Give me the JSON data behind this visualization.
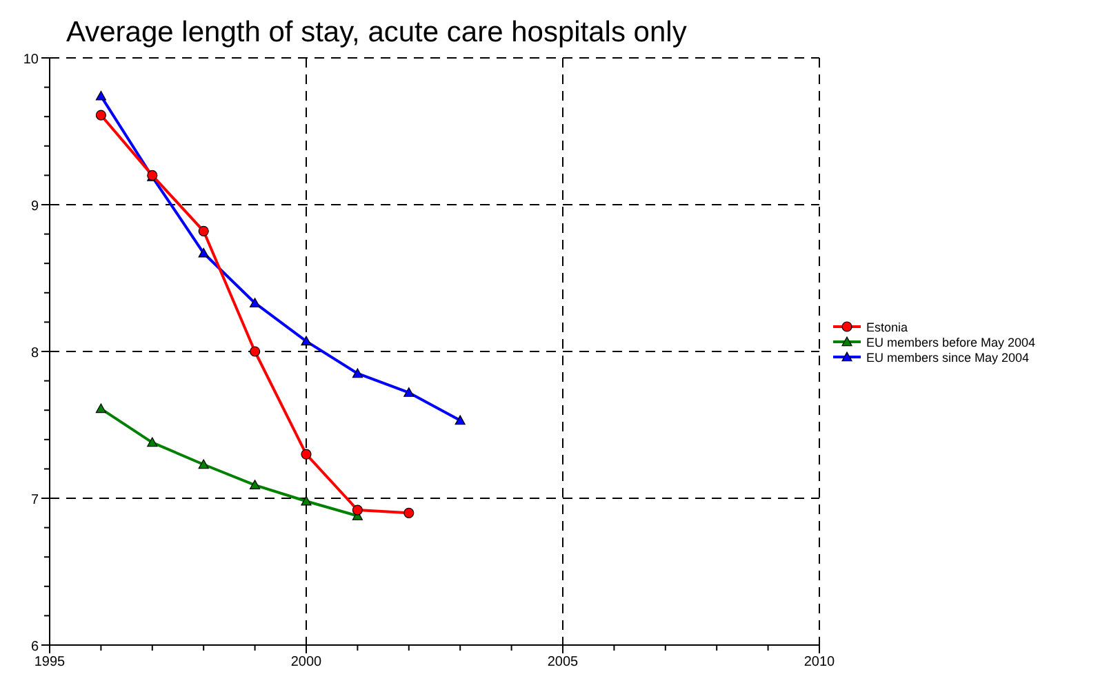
{
  "chart_data": {
    "type": "line",
    "title": "Average length of stay, acute care hospitals only",
    "x": [
      1996,
      1997,
      1998,
      1999,
      2000,
      2001,
      2002,
      2003
    ],
    "series": [
      {
        "name": "Estonia",
        "color": "#ff0000",
        "marker": "circle",
        "values": [
          9.61,
          9.2,
          8.82,
          8.0,
          7.3,
          6.92,
          6.9,
          null
        ]
      },
      {
        "name": "EU members before May 2004",
        "color": "#008000",
        "marker": "triangle",
        "values": [
          7.61,
          7.38,
          7.23,
          7.09,
          6.98,
          6.88,
          null,
          null
        ]
      },
      {
        "name": "EU members since May 2004",
        "color": "#0000ff",
        "marker": "triangle",
        "values": [
          9.74,
          9.19,
          8.67,
          8.33,
          8.07,
          7.85,
          7.72,
          7.53
        ]
      }
    ],
    "xlim": [
      1995,
      2010
    ],
    "xticks": [
      1995,
      {
        "value": 1996,
        "label": null
      },
      {
        "value": 1997,
        "label": null
      },
      {
        "value": 1998,
        "label": null
      },
      {
        "value": 1999,
        "label": null
      },
      2000,
      {
        "value": 2001,
        "label": null
      },
      {
        "value": 2002,
        "label": null
      },
      {
        "value": 2003,
        "label": null
      },
      {
        "value": 2004,
        "label": null
      },
      2005,
      {
        "value": 2006,
        "label": null
      },
      {
        "value": 2007,
        "label": null
      },
      {
        "value": 2008,
        "label": null
      },
      {
        "value": 2009,
        "label": null
      },
      2010
    ],
    "ylim": [
      6,
      10
    ],
    "yticks": [
      6,
      {
        "value": 6.2,
        "label": null
      },
      {
        "value": 6.4,
        "label": null
      },
      {
        "value": 6.6,
        "label": null
      },
      {
        "value": 6.8,
        "label": null
      },
      7,
      {
        "value": 7.2,
        "label": null
      },
      {
        "value": 7.4,
        "label": null
      },
      {
        "value": 7.6,
        "label": null
      },
      {
        "value": 7.8,
        "label": null
      },
      8,
      {
        "value": 8.2,
        "label": null
      },
      {
        "value": 8.4,
        "label": null
      },
      {
        "value": 8.6,
        "label": null
      },
      {
        "value": 8.8,
        "label": null
      },
      9,
      {
        "value": 9.2,
        "label": null
      },
      {
        "value": 9.4,
        "label": null
      },
      {
        "value": 9.6,
        "label": null
      },
      {
        "value": 9.8,
        "label": null
      },
      10
    ],
    "grid": true,
    "line_style": "solid",
    "legend": "right"
  }
}
